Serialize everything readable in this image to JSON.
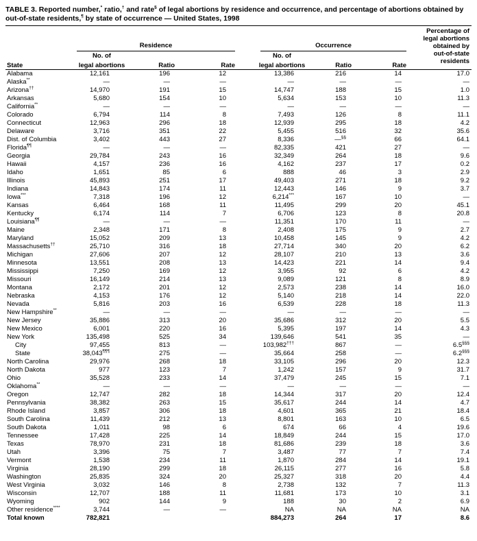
{
  "title": "TABLE 3. Reported number,* ratio,† and rate§ of legal abortions by residence and occurrence, and percentage of abortions obtained by out-of-state residents,¶ by state of occurrence — United States, 1998",
  "table": {
    "group_headers": {
      "residence": "Residence",
      "occurrence": "Occurrence"
    },
    "column_headers": {
      "state": "State",
      "no_of_line1": "No. of",
      "no_of_line2": "legal abortions",
      "ratio": "Ratio",
      "rate": "Rate",
      "percentage_lines": [
        "Percentage of",
        "legal abortions",
        "obtained by",
        "out-of-state",
        "residents"
      ]
    },
    "rows": [
      {
        "state": "Alabama",
        "res": [
          "12,161",
          "196",
          "12"
        ],
        "occ": [
          "13,386",
          "216",
          "14"
        ],
        "pct": "17.0"
      },
      {
        "state": "Alaska**",
        "res": [
          "—",
          "—",
          "—"
        ],
        "occ": [
          "—",
          "—",
          "—"
        ],
        "pct": "—"
      },
      {
        "state": "Arizona††",
        "res": [
          "14,970",
          "191",
          "15"
        ],
        "occ": [
          "14,747",
          "188",
          "15"
        ],
        "pct": "1.0"
      },
      {
        "state": "Arkansas",
        "res": [
          "5,680",
          "154",
          "10"
        ],
        "occ": [
          "5,634",
          "153",
          "10"
        ],
        "pct": "11.3"
      },
      {
        "state": "California**",
        "res": [
          "—",
          "—",
          "—"
        ],
        "occ": [
          "—",
          "—",
          "—"
        ],
        "pct": "—"
      },
      {
        "state": "Colorado",
        "res": [
          "6,794",
          "114",
          "8"
        ],
        "occ": [
          "7,493",
          "126",
          "8"
        ],
        "pct": "11.1"
      },
      {
        "state": "Connecticut",
        "res": [
          "12,963",
          "296",
          "18"
        ],
        "occ": [
          "12,939",
          "295",
          "18"
        ],
        "pct": "4.2"
      },
      {
        "state": "Delaware",
        "res": [
          "3,716",
          "351",
          "22"
        ],
        "occ": [
          "5,455",
          "516",
          "32"
        ],
        "pct": "35.6"
      },
      {
        "state": "Dist. of Columbia",
        "res": [
          "3,402",
          "443",
          "27"
        ],
        "occ": [
          "8,336",
          "—§§",
          "66"
        ],
        "pct": "64.1"
      },
      {
        "state": "Florida¶¶",
        "res": [
          "—",
          "—",
          "—"
        ],
        "occ": [
          "82,335",
          "421",
          "27"
        ],
        "pct": "—"
      },
      {
        "state": "Georgia",
        "res": [
          "29,784",
          "243",
          "16"
        ],
        "occ": [
          "32,349",
          "264",
          "18"
        ],
        "pct": "9.6"
      },
      {
        "state": "Hawaii",
        "res": [
          "4,157",
          "236",
          "16"
        ],
        "occ": [
          "4,162",
          "237",
          "17"
        ],
        "pct": "0.2"
      },
      {
        "state": "Idaho",
        "res": [
          "1,651",
          "85",
          "6"
        ],
        "occ": [
          "888",
          "46",
          "3"
        ],
        "pct": "2.9"
      },
      {
        "state": "Illinois",
        "res": [
          "45,893",
          "251",
          "17"
        ],
        "occ": [
          "49,403",
          "271",
          "18"
        ],
        "pct": "9.2"
      },
      {
        "state": "Indiana",
        "res": [
          "14,843",
          "174",
          "11"
        ],
        "occ": [
          "12,443",
          "146",
          "9"
        ],
        "pct": "3.7"
      },
      {
        "state": "Iowa***",
        "res": [
          "7,318",
          "196",
          "12"
        ],
        "occ": [
          "6,214***",
          "167",
          "10"
        ],
        "pct": "—"
      },
      {
        "state": "Kansas",
        "res": [
          "6,464",
          "168",
          "11"
        ],
        "occ": [
          "11,495",
          "299",
          "20"
        ],
        "pct": "45.1"
      },
      {
        "state": "Kentucky",
        "res": [
          "6,174",
          "114",
          "7"
        ],
        "occ": [
          "6,706",
          "123",
          "8"
        ],
        "pct": "20.8"
      },
      {
        "state": "Louisiana¶¶",
        "res": [
          "—",
          "—",
          "—"
        ],
        "occ": [
          "11,351",
          "170",
          "11"
        ],
        "pct": "—"
      },
      {
        "state": "Maine",
        "res": [
          "2,348",
          "171",
          "8"
        ],
        "occ": [
          "2,408",
          "175",
          "9"
        ],
        "pct": "2.7"
      },
      {
        "state": "Maryland",
        "res": [
          "15,052",
          "209",
          "13"
        ],
        "occ": [
          "10,458",
          "145",
          "9"
        ],
        "pct": "4.2"
      },
      {
        "state": "Massachusetts††",
        "res": [
          "25,710",
          "316",
          "18"
        ],
        "occ": [
          "27,714",
          "340",
          "20"
        ],
        "pct": "6.2"
      },
      {
        "state": "Michigan",
        "res": [
          "27,606",
          "207",
          "12"
        ],
        "occ": [
          "28,107",
          "210",
          "13"
        ],
        "pct": "3.6"
      },
      {
        "state": "Minnesota",
        "res": [
          "13,551",
          "208",
          "13"
        ],
        "occ": [
          "14,423",
          "221",
          "14"
        ],
        "pct": "9.4"
      },
      {
        "state": "Mississippi",
        "res": [
          "7,250",
          "169",
          "12"
        ],
        "occ": [
          "3,955",
          "92",
          "6"
        ],
        "pct": "4.2"
      },
      {
        "state": "Missouri",
        "res": [
          "16,149",
          "214",
          "13"
        ],
        "occ": [
          "9,089",
          "121",
          "8"
        ],
        "pct": "8.9"
      },
      {
        "state": "Montana",
        "res": [
          "2,172",
          "201",
          "12"
        ],
        "occ": [
          "2,573",
          "238",
          "14"
        ],
        "pct": "16.0"
      },
      {
        "state": "Nebraska",
        "res": [
          "4,153",
          "176",
          "12"
        ],
        "occ": [
          "5,140",
          "218",
          "14"
        ],
        "pct": "22.0"
      },
      {
        "state": "Nevada",
        "res": [
          "5,816",
          "203",
          "16"
        ],
        "occ": [
          "6,539",
          "228",
          "18"
        ],
        "pct": "11.3"
      },
      {
        "state": "New Hampshire**",
        "res": [
          "—",
          "—",
          "—"
        ],
        "occ": [
          "—",
          "—",
          "—"
        ],
        "pct": "—"
      },
      {
        "state": "New Jersey",
        "res": [
          "35,886",
          "313",
          "20"
        ],
        "occ": [
          "35,686",
          "312",
          "20"
        ],
        "pct": "5.5"
      },
      {
        "state": "New Mexico",
        "res": [
          "6,001",
          "220",
          "16"
        ],
        "occ": [
          "5,395",
          "197",
          "14"
        ],
        "pct": "4.3"
      },
      {
        "state": "New York",
        "res": [
          "135,498",
          "525",
          "34"
        ],
        "occ": [
          "139,646",
          "541",
          "35"
        ],
        "pct": "—"
      },
      {
        "state": "City",
        "indent": true,
        "res": [
          "97,455",
          "813",
          "—"
        ],
        "occ": [
          "103,982†††",
          "867",
          "—"
        ],
        "pct": "6.5§§§"
      },
      {
        "state": "State",
        "indent": true,
        "res": [
          "38,043¶¶¶",
          "275",
          "—"
        ],
        "occ": [
          "35,664",
          "258",
          "—"
        ],
        "pct": "6.2§§§"
      },
      {
        "state": "North Carolina",
        "res": [
          "29,976",
          "268",
          "18"
        ],
        "occ": [
          "33,105",
          "296",
          "20"
        ],
        "pct": "12.3"
      },
      {
        "state": "North Dakota",
        "res": [
          "977",
          "123",
          "7"
        ],
        "occ": [
          "1,242",
          "157",
          "9"
        ],
        "pct": "31.7"
      },
      {
        "state": "Ohio",
        "res": [
          "35,528",
          "233",
          "14"
        ],
        "occ": [
          "37,479",
          "245",
          "15"
        ],
        "pct": "7.1"
      },
      {
        "state": "Oklahoma**",
        "res": [
          "—",
          "—",
          "—"
        ],
        "occ": [
          "—",
          "—",
          "—"
        ],
        "pct": "—"
      },
      {
        "state": "Oregon",
        "res": [
          "12,747",
          "282",
          "18"
        ],
        "occ": [
          "14,344",
          "317",
          "20"
        ],
        "pct": "12.4"
      },
      {
        "state": "Pennsylvania",
        "res": [
          "38,382",
          "263",
          "15"
        ],
        "occ": [
          "35,617",
          "244",
          "14"
        ],
        "pct": "4.7"
      },
      {
        "state": "Rhode Island",
        "res": [
          "3,857",
          "306",
          "18"
        ],
        "occ": [
          "4,601",
          "365",
          "21"
        ],
        "pct": "18.4"
      },
      {
        "state": "South Carolina",
        "res": [
          "11,439",
          "212",
          "13"
        ],
        "occ": [
          "8,801",
          "163",
          "10"
        ],
        "pct": "6.5"
      },
      {
        "state": "South Dakota",
        "res": [
          "1,011",
          "98",
          "6"
        ],
        "occ": [
          "674",
          "66",
          "4"
        ],
        "pct": "19.6"
      },
      {
        "state": "Tennessee",
        "res": [
          "17,428",
          "225",
          "14"
        ],
        "occ": [
          "18,849",
          "244",
          "15"
        ],
        "pct": "17.0"
      },
      {
        "state": "Texas",
        "res": [
          "78,970",
          "231",
          "18"
        ],
        "occ": [
          "81,686",
          "239",
          "18"
        ],
        "pct": "3.6"
      },
      {
        "state": "Utah",
        "res": [
          "3,396",
          "75",
          "7"
        ],
        "occ": [
          "3,487",
          "77",
          "7"
        ],
        "pct": "7.4"
      },
      {
        "state": "Vermont",
        "res": [
          "1,538",
          "234",
          "11"
        ],
        "occ": [
          "1,870",
          "284",
          "14"
        ],
        "pct": "19.1"
      },
      {
        "state": "Virginia",
        "res": [
          "28,190",
          "299",
          "18"
        ],
        "occ": [
          "26,115",
          "277",
          "16"
        ],
        "pct": "5.8"
      },
      {
        "state": "Washington",
        "res": [
          "25,835",
          "324",
          "20"
        ],
        "occ": [
          "25,327",
          "318",
          "20"
        ],
        "pct": "4.4"
      },
      {
        "state": "West Virginia",
        "res": [
          "3,032",
          "146",
          "8"
        ],
        "occ": [
          "2,738",
          "132",
          "7"
        ],
        "pct": "11.3"
      },
      {
        "state": "Wisconsin",
        "res": [
          "12,707",
          "188",
          "11"
        ],
        "occ": [
          "11,681",
          "173",
          "10"
        ],
        "pct": "3.1"
      },
      {
        "state": "Wyoming",
        "res": [
          "902",
          "144",
          "9"
        ],
        "occ": [
          "188",
          "30",
          "2"
        ],
        "pct": "6.9"
      },
      {
        "state": "Other residence****",
        "res": [
          "3,744",
          "—",
          "—"
        ],
        "occ": [
          "NA",
          "NA",
          "NA"
        ],
        "pct": "NA"
      },
      {
        "state": "Total known",
        "bold": true,
        "res": [
          "782,821",
          "",
          ""
        ],
        "occ": [
          "884,273",
          "264",
          "17"
        ],
        "pct": "8.6"
      }
    ]
  }
}
